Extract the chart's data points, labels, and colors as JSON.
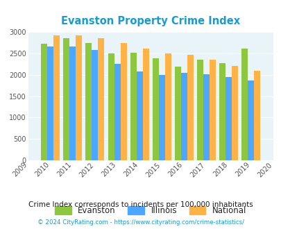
{
  "title": "Evanston Property Crime Index",
  "evanston": [
    2720,
    2860,
    2750,
    2500,
    2510,
    2390,
    2190,
    2350,
    2270,
    2620
  ],
  "illinois": [
    2660,
    2660,
    2580,
    2260,
    2080,
    2000,
    2040,
    2010,
    1940,
    1860
  ],
  "national": [
    2930,
    2920,
    2860,
    2740,
    2610,
    2500,
    2470,
    2360,
    2200,
    2090
  ],
  "years_with_data": [
    2010,
    2011,
    2012,
    2013,
    2014,
    2015,
    2016,
    2017,
    2018,
    2019
  ],
  "bar_colors": {
    "evanston": "#8dc63f",
    "illinois": "#4da6ff",
    "national": "#ffb347"
  },
  "ylim": [
    0,
    3000
  ],
  "yticks": [
    0,
    500,
    1000,
    1500,
    2000,
    2500,
    3000
  ],
  "xlim_min": 2009,
  "xlim_max": 2020,
  "bg_color": "#e8f4f8",
  "grid_color": "#ffffff",
  "title_color": "#1a9bcf",
  "legend_labels": [
    "Evanston",
    "Illinois",
    "National"
  ],
  "subtitle": "Crime Index corresponds to incidents per 100,000 inhabitants",
  "footer": "© 2024 CityRating.com - https://www.cityrating.com/crime-statistics/",
  "subtitle_color": "#1a1a1a",
  "footer_color": "#1a9bcf",
  "bar_width": 0.28
}
